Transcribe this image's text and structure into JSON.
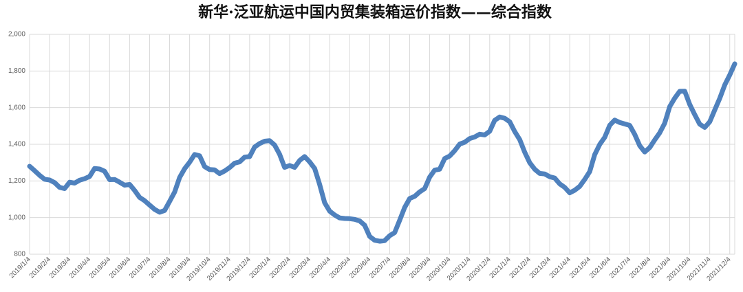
{
  "chart_data": {
    "type": "line",
    "title": "新华·泛亚航运中国内贸集装箱运价指数——综合指数",
    "categories": [
      "2019/1/4",
      null,
      null,
      null,
      "2019/2/4",
      null,
      null,
      null,
      "2019/3/4",
      null,
      null,
      null,
      "2019/4/4",
      null,
      null,
      null,
      "2019/5/4",
      null,
      null,
      null,
      "2019/6/4",
      null,
      null,
      null,
      "2019/7/4",
      null,
      null,
      null,
      "2019/8/4",
      null,
      null,
      null,
      "2019/9/4",
      null,
      null,
      null,
      "2019/10/4",
      null,
      null,
      null,
      "2019/11/4",
      null,
      null,
      null,
      "2019/12/4",
      null,
      null,
      null,
      "2020/1/4",
      null,
      null,
      null,
      "2020/2/4",
      null,
      null,
      null,
      "2020/3/4",
      null,
      null,
      null,
      "2020/4/4",
      null,
      null,
      null,
      "2020/5/4",
      null,
      null,
      null,
      "2020/6/4",
      null,
      null,
      null,
      "2020/7/4",
      null,
      null,
      null,
      "2020/8/4",
      null,
      null,
      null,
      "2020/9/4",
      null,
      null,
      null,
      "2020/10/4",
      null,
      null,
      null,
      "2020/11/4",
      null,
      null,
      null,
      "2020/12/4",
      null,
      null,
      null,
      "2021/1/4",
      null,
      null,
      null,
      "2021/2/4",
      null,
      null,
      null,
      "2021/3/4",
      null,
      null,
      null,
      "2021/4/4",
      null,
      null,
      null,
      "2021/5/4",
      null,
      null,
      null,
      "2021/6/4",
      null,
      null,
      null,
      "2021/7/4",
      null,
      null,
      null,
      "2021/8/4",
      null,
      null,
      null,
      "2021/9/4",
      null,
      null,
      null,
      "2021/10/4",
      null,
      null,
      null,
      "2021/11/4",
      null,
      null,
      null,
      "2021/12/4",
      null
    ],
    "series": [
      {
        "name": "综合指数",
        "color": "#4f81bd",
        "values": [
          1280,
          1256,
          1231,
          1209,
          1205,
          1191,
          1165,
          1158,
          1193,
          1188,
          1204,
          1212,
          1224,
          1268,
          1265,
          1253,
          1207,
          1208,
          1193,
          1177,
          1181,
          1148,
          1110,
          1092,
          1068,
          1045,
          1029,
          1039,
          1088,
          1139,
          1219,
          1267,
          1302,
          1344,
          1337,
          1278,
          1262,
          1260,
          1240,
          1254,
          1273,
          1297,
          1304,
          1330,
          1333,
          1385,
          1404,
          1417,
          1420,
          1396,
          1345,
          1274,
          1284,
          1274,
          1312,
          1333,
          1304,
          1268,
          1181,
          1081,
          1035,
          1014,
          998,
          995,
          994,
          990,
          982,
          958,
          897,
          876,
          871,
          874,
          901,
          918,
          985,
          1055,
          1104,
          1116,
          1140,
          1158,
          1221,
          1259,
          1264,
          1322,
          1336,
          1365,
          1401,
          1411,
          1431,
          1440,
          1455,
          1451,
          1471,
          1531,
          1549,
          1542,
          1523,
          1470,
          1426,
          1357,
          1299,
          1264,
          1241,
          1238,
          1223,
          1216,
          1184,
          1165,
          1135,
          1149,
          1170,
          1208,
          1251,
          1344,
          1399,
          1438,
          1504,
          1532,
          1519,
          1511,
          1503,
          1454,
          1392,
          1358,
          1382,
          1424,
          1463,
          1515,
          1606,
          1652,
          1689,
          1690,
          1617,
          1562,
          1510,
          1492,
          1523,
          1587,
          1651,
          1724,
          1778,
          1839
        ]
      }
    ],
    "ylim": [
      800,
      2000
    ],
    "yticks": [
      800,
      {
        "value": 1000,
        "label": "1,000"
      },
      {
        "value": 1200,
        "label": "1,200"
      },
      {
        "value": 1400,
        "label": "1,400"
      },
      {
        "value": 1600,
        "label": "1,600"
      },
      {
        "value": 1800,
        "label": "1,800"
      },
      {
        "value": 2000,
        "label": "2,000"
      }
    ],
    "grid": true
  }
}
